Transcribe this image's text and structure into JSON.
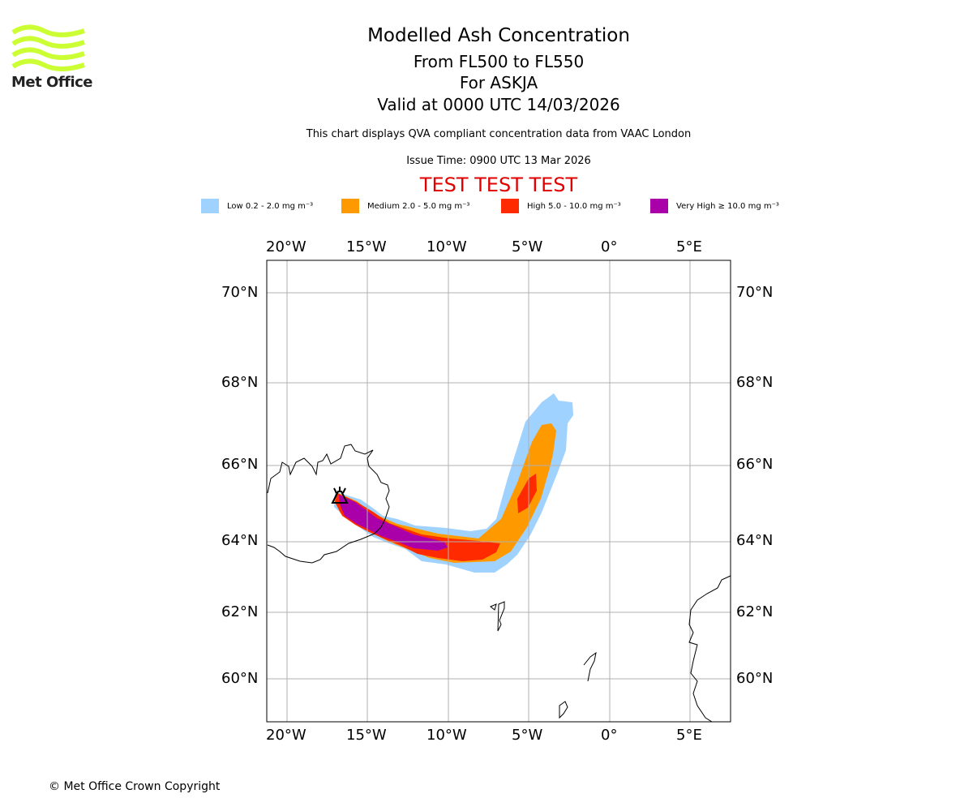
{
  "header": {
    "title": "Modelled Ash Concentration",
    "levels": "From FL500 to FL550",
    "volcano": "For ASKJA",
    "valid": "Valid at 0000 UTC 14/03/2026",
    "description": "This chart displays QVA compliant concentration data from VAAC London",
    "issue": "Issue Time: 0900 UTC 13 Mar 2026",
    "test_banner": "TEST TEST TEST"
  },
  "logo": {
    "text": "Met Office",
    "color": "#ccff33"
  },
  "legend": [
    {
      "label": "Low 0.2 - 2.0 mg m⁻³",
      "color": "#a0d2ff"
    },
    {
      "label": "Medium 2.0 - 5.0 mg m⁻³",
      "color": "#ff9900"
    },
    {
      "label": "High 5.0 - 10.0 mg m⁻³",
      "color": "#ff2a00"
    },
    {
      "label": "Very High ≥ 10.0 mg m⁻³",
      "color": "#aa00aa"
    }
  ],
  "chart_data": {
    "type": "heatmap",
    "title": "Modelled Ash Concentration",
    "x_ticks": [
      "20°W",
      "15°W",
      "10°W",
      "5°W",
      "0°",
      "5°E"
    ],
    "y_ticks": [
      "70°N",
      "68°N",
      "66°N",
      "64°N",
      "62°N",
      "60°N"
    ],
    "xlim": [
      -21.3,
      7.4
    ],
    "ylim": [
      58.8,
      70.8
    ],
    "grid": true,
    "source_volcano": {
      "name": "ASKJA",
      "lon": -16.7,
      "lat": 65.0
    },
    "plume_description_levels": [
      "Low",
      "Medium",
      "High",
      "Very High"
    ]
  },
  "footer": {
    "copyright": "© Met Office Crown Copyright"
  }
}
